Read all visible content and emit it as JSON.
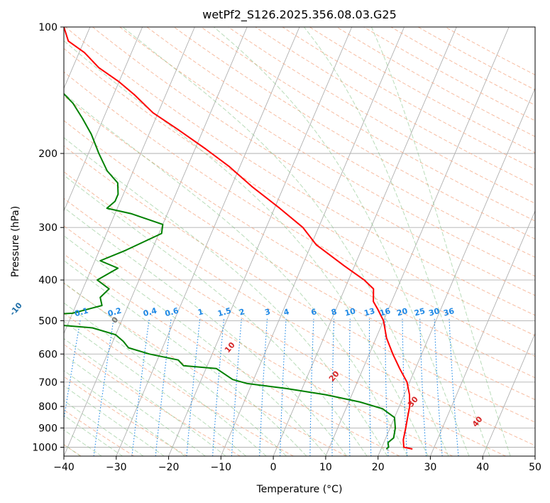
{
  "chart_data": {
    "type": "line",
    "title": "wetPf2_S126.2025.356.08.03.G25",
    "xlabel": "Temperature (°C)",
    "ylabel": "Pressure (hPa)",
    "xlim": [
      -40,
      50
    ],
    "ylim": [
      1050,
      100
    ],
    "y_scale": "log",
    "grid": true,
    "x_ticks": [
      -40,
      -30,
      -20,
      -10,
      0,
      10,
      20,
      30,
      40,
      50
    ],
    "y_ticks": [
      100,
      200,
      300,
      400,
      500,
      600,
      700,
      800,
      900,
      1000
    ],
    "skew": true,
    "series": [
      {
        "role": "temperature",
        "color": "#ff0000",
        "points": [
          [
            26.0,
            1010
          ],
          [
            24.2,
            1000
          ],
          [
            23.5,
            960
          ],
          [
            23.0,
            900
          ],
          [
            22.5,
            850
          ],
          [
            22.0,
            800
          ],
          [
            21.0,
            750
          ],
          [
            19.5,
            700
          ],
          [
            17.0,
            650
          ],
          [
            14.5,
            600
          ],
          [
            12.0,
            550
          ],
          [
            10.0,
            500
          ],
          [
            8.0,
            470
          ],
          [
            6.5,
            450
          ],
          [
            5.5,
            420
          ],
          [
            3.0,
            400
          ],
          [
            -2.0,
            370
          ],
          [
            -9.0,
            330
          ],
          [
            -13.0,
            300
          ],
          [
            -19.0,
            270
          ],
          [
            -26.0,
            240
          ],
          [
            -32.0,
            215
          ],
          [
            -38.0,
            195
          ],
          [
            -45.0,
            175
          ],
          [
            -51.0,
            160
          ],
          [
            -56.0,
            145
          ],
          [
            -60.0,
            135
          ],
          [
            -65.0,
            125
          ],
          [
            -69.0,
            115
          ],
          [
            -73.0,
            108
          ],
          [
            -75.0,
            100
          ]
        ]
      },
      {
        "role": "dewpoint",
        "color": "#008000",
        "points": [
          [
            21.0,
            1010
          ],
          [
            21.3,
            1000
          ],
          [
            20.8,
            975
          ],
          [
            21.5,
            950
          ],
          [
            21.0,
            900
          ],
          [
            20.0,
            850
          ],
          [
            17.0,
            810
          ],
          [
            12.0,
            780
          ],
          [
            5.0,
            750
          ],
          [
            -3.0,
            725
          ],
          [
            -11.0,
            705
          ],
          [
            -14.0,
            690
          ],
          [
            -18.0,
            650
          ],
          [
            -24.5,
            640
          ],
          [
            -26.0,
            620
          ],
          [
            -32.0,
            600
          ],
          [
            -36.5,
            580
          ],
          [
            -38.0,
            560
          ],
          [
            -40.0,
            540
          ],
          [
            -45.0,
            520
          ],
          [
            -62.0,
            500
          ],
          [
            -73.0,
            495
          ],
          [
            -64.0,
            490
          ],
          [
            -50.0,
            480
          ],
          [
            -45.0,
            460
          ],
          [
            -46.0,
            440
          ],
          [
            -45.0,
            420
          ],
          [
            -48.0,
            400
          ],
          [
            -45.0,
            375
          ],
          [
            -49.0,
            360
          ],
          [
            -45.0,
            340
          ],
          [
            -39.5,
            310
          ],
          [
            -40.0,
            295
          ],
          [
            -47.0,
            278
          ],
          [
            -52.0,
            270
          ],
          [
            -51.0,
            260
          ],
          [
            -51.0,
            250
          ],
          [
            -52.0,
            235
          ],
          [
            -55.0,
            220
          ],
          [
            -58.0,
            200
          ],
          [
            -61.0,
            180
          ],
          [
            -64.0,
            165
          ],
          [
            -67.0,
            152
          ],
          [
            -71.0,
            140
          ],
          [
            -75.0,
            125
          ],
          [
            -80.0,
            110
          ],
          [
            -81.5,
            100
          ]
        ]
      }
    ],
    "dry_adiabats_theta_c": [
      -100,
      -90,
      -80,
      -70,
      -60,
      -50,
      -40,
      -30,
      -20,
      -10,
      0,
      10,
      20,
      30,
      40
    ],
    "moist_adiabats_c": [
      0,
      10,
      20,
      30,
      40
    ],
    "mixing_ratios_gkg": [
      "0.1",
      "0.2",
      "0.4",
      "0.6",
      "1",
      "1.5",
      "2",
      "3",
      "4",
      "6",
      "8",
      "10",
      "13",
      "16",
      "20",
      "25",
      "30",
      "36"
    ],
    "colors": {
      "temperature": "#ff0000",
      "dewpoint": "#008000",
      "dry_adiabat": "#f4a582",
      "moist_adiabat": "#7fbf7f",
      "mixing_ratio": "#1e88e5",
      "dry_label": "#1f6fa8",
      "moist_label": "#d62728",
      "grid": "#b0b0b0"
    }
  }
}
